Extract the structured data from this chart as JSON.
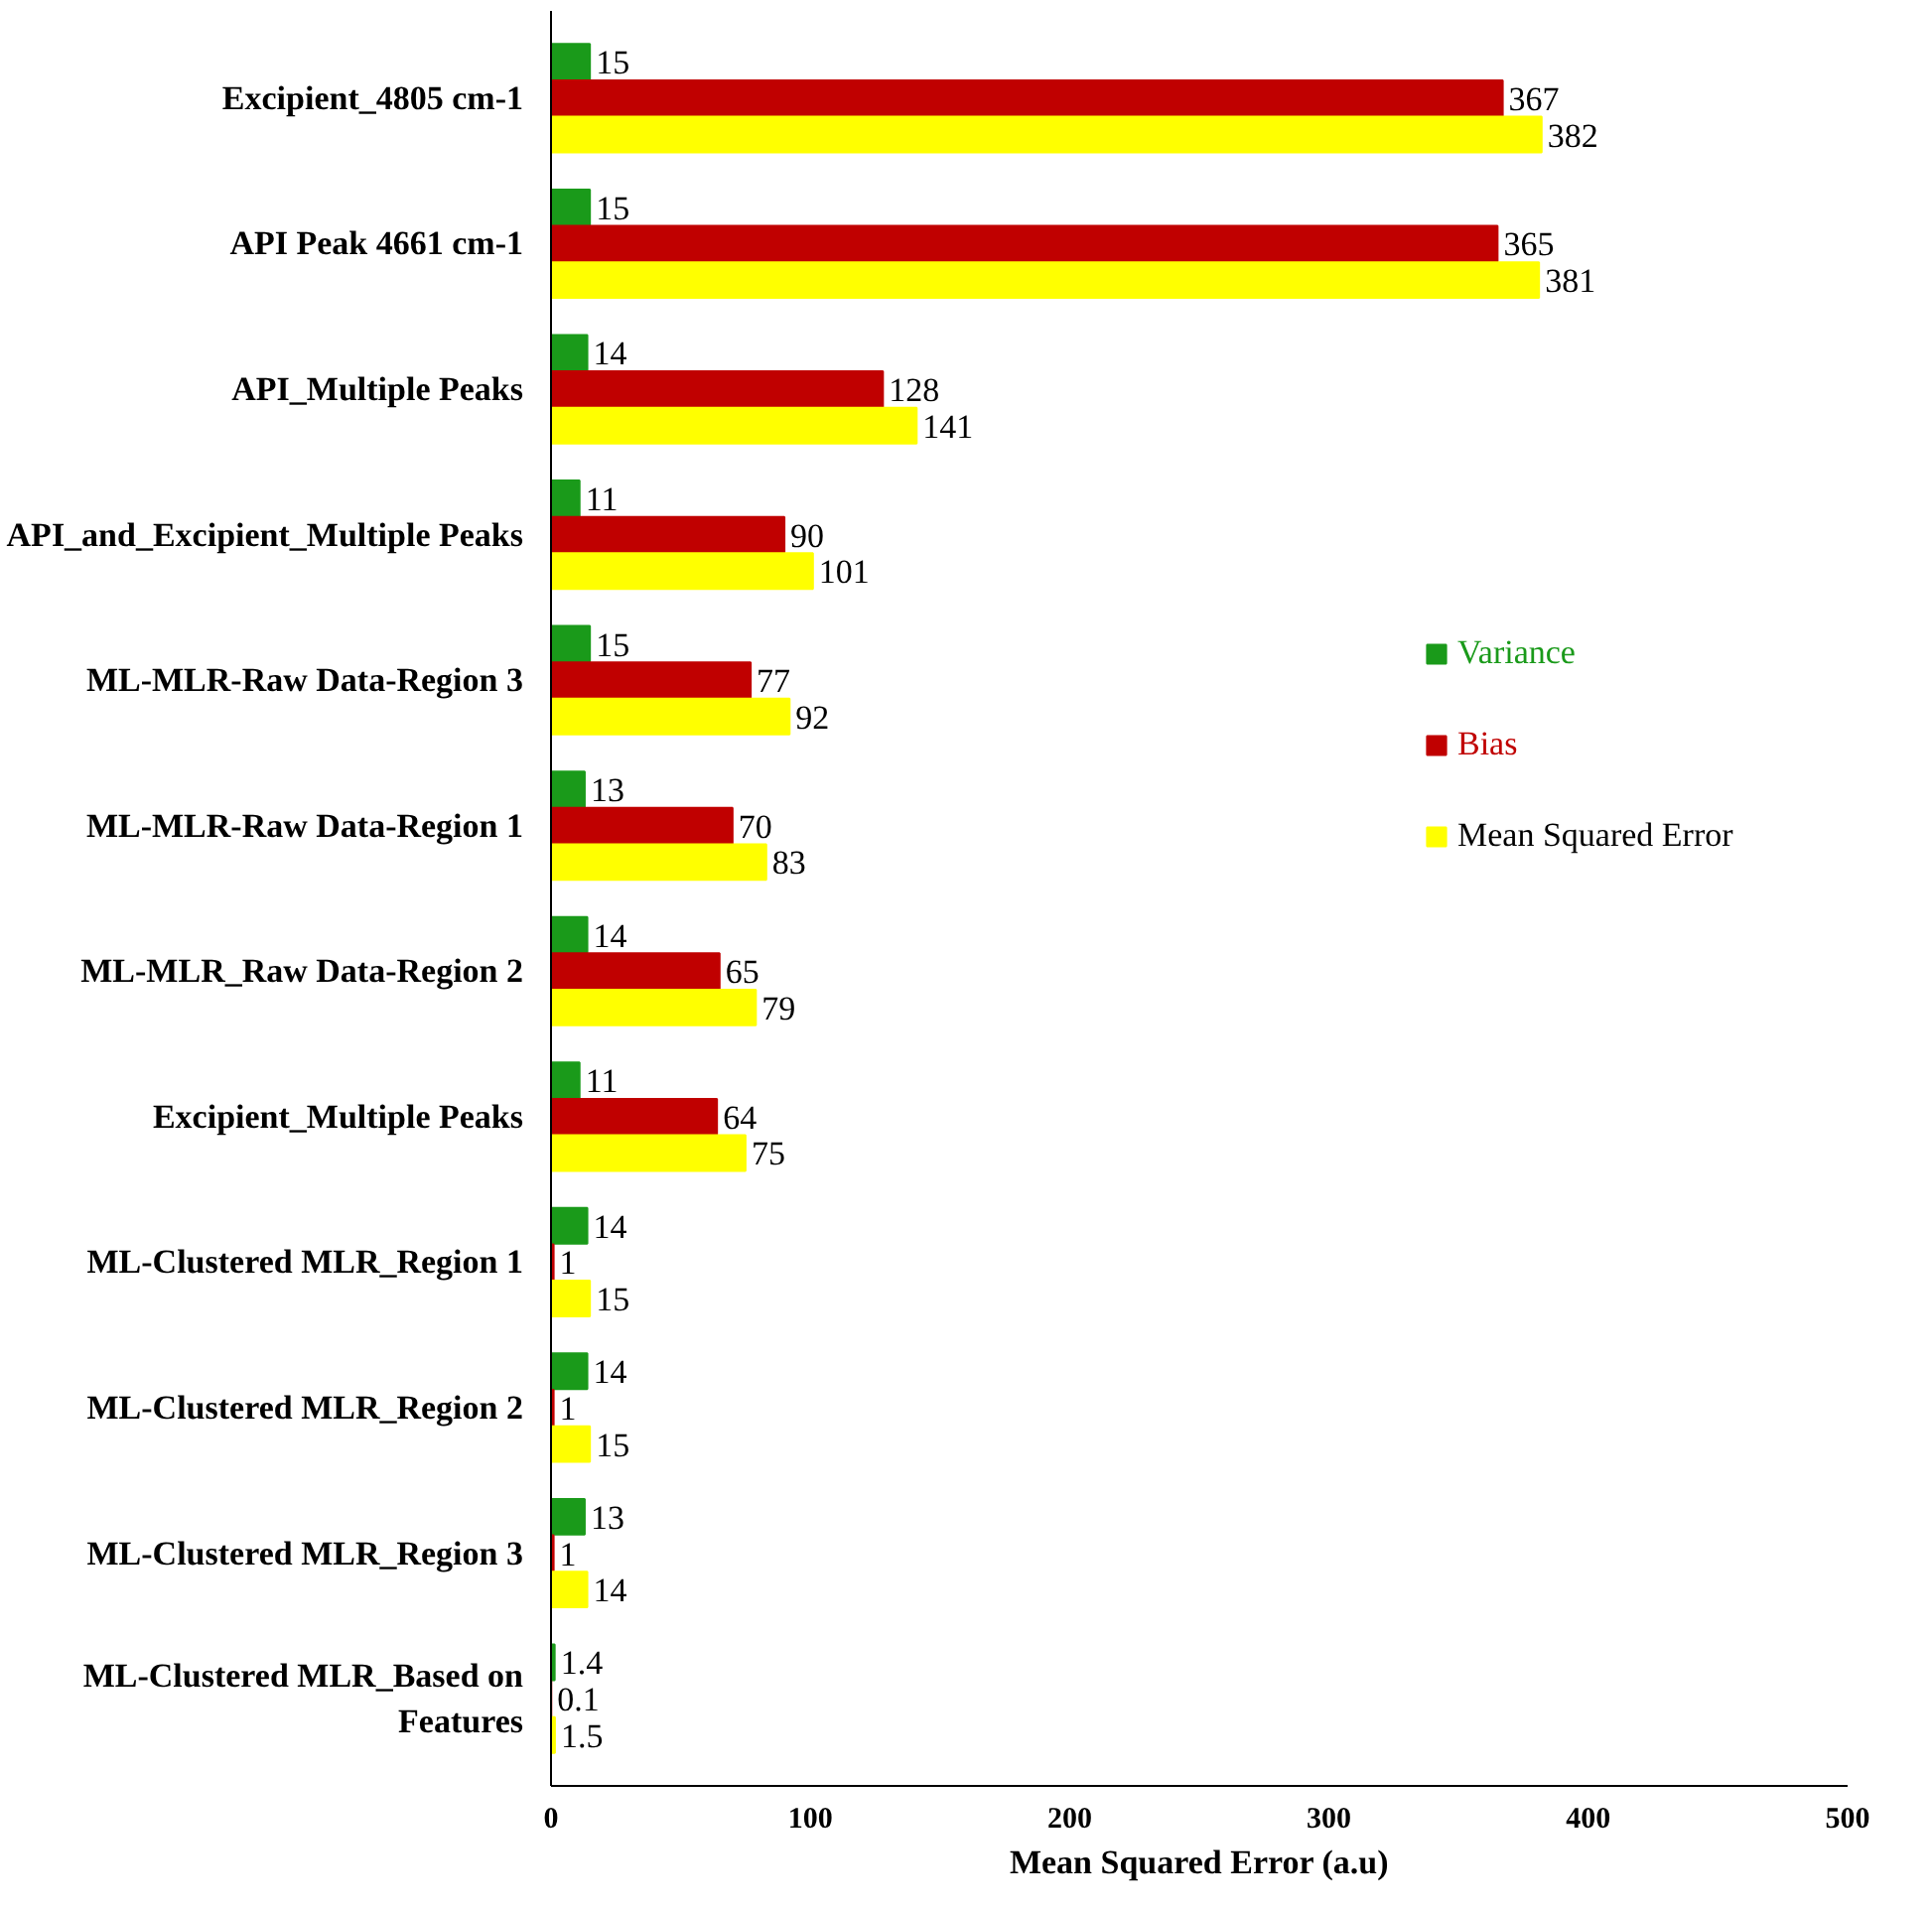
{
  "chart_data": {
    "type": "bar",
    "orientation": "horizontal",
    "xlabel": "Mean Squared Error (a.u)",
    "categories": [
      "Excipient_4805 cm-1",
      "API Peak 4661 cm-1",
      "API_Multiple Peaks",
      "API_and_Excipient_Multiple Peaks",
      "ML-MLR-Raw Data-Region 3",
      "ML-MLR-Raw Data-Region 1",
      "ML-MLR_Raw Data-Region 2",
      "Excipient_Multiple Peaks",
      "ML-Clustered MLR_Region 1",
      "ML-Clustered MLR_Region 2",
      "ML-Clustered MLR_Region 3",
      "ML-Clustered MLR_Based on Features"
    ],
    "series": [
      {
        "name": "Variance",
        "color": "#1a9a1a",
        "values": [
          15,
          15,
          14,
          11,
          15,
          13,
          14,
          11,
          14,
          14,
          13,
          1.4
        ]
      },
      {
        "name": "Bias",
        "color": "#c00000",
        "values": [
          367,
          365,
          128,
          90,
          77,
          70,
          65,
          64,
          1,
          1,
          1,
          0.1
        ]
      },
      {
        "name": "Mean Squared Error",
        "color": "#ffff00",
        "values": [
          382,
          381,
          141,
          101,
          92,
          83,
          79,
          75,
          15,
          15,
          14,
          1.5
        ]
      }
    ],
    "xlim": [
      0,
      500
    ],
    "xticks": [
      0,
      100,
      200,
      300,
      400,
      500
    ],
    "data_labels": true,
    "legend": "right",
    "grid": false
  }
}
